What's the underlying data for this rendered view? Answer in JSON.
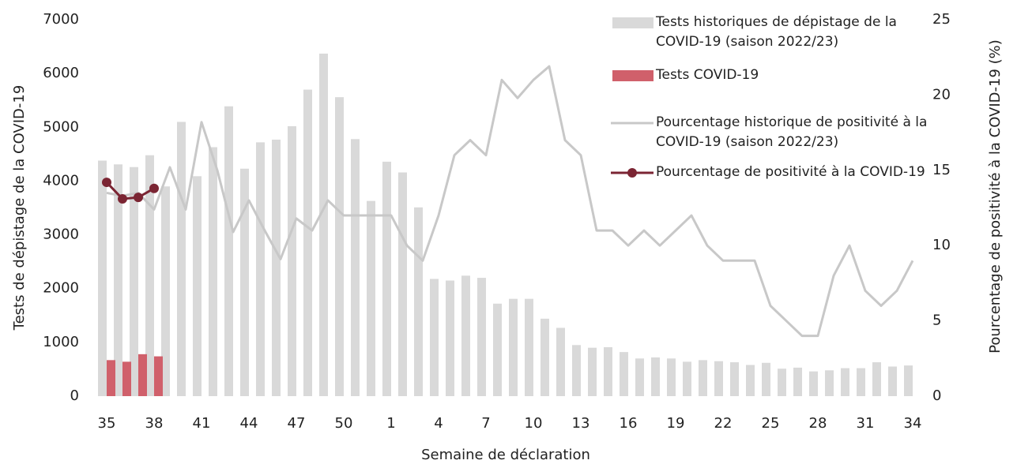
{
  "chart_data": {
    "type": "bar",
    "x_label": "Semaine de déclaration",
    "y_label": "Tests de dépistage de la COVID-19",
    "y2_label": "Pourcentage de positivité à la COVID-19 (%)",
    "categories": [
      35,
      null,
      null,
      38,
      null,
      null,
      41,
      null,
      null,
      44,
      null,
      null,
      47,
      null,
      null,
      50,
      null,
      null,
      1,
      null,
      null,
      4,
      null,
      null,
      7,
      null,
      null,
      10,
      null,
      null,
      13,
      null,
      null,
      16,
      null,
      null,
      19,
      null,
      null,
      22,
      null,
      null,
      25,
      null,
      null,
      28,
      null,
      null,
      31,
      null,
      null,
      34
    ],
    "ylim": [
      0,
      7000
    ],
    "yticks": [
      0,
      1000,
      2000,
      3000,
      4000,
      5000,
      6000,
      7000
    ],
    "y2lim": [
      0,
      25
    ],
    "y2ticks": [
      0,
      5,
      10,
      15,
      20,
      25
    ],
    "legend": "top-right",
    "series": [
      {
        "name": "Tests historiques de dépistage de la COVID-19 (saison 2022/23)",
        "type": "bar",
        "color": "#d9d9d9",
        "values": [
          4380,
          4310,
          4260,
          4480,
          3900,
          5100,
          4090,
          4630,
          5390,
          4230,
          4720,
          4770,
          5020,
          5700,
          6370,
          5560,
          4780,
          3630,
          4360,
          4160,
          3510,
          2180,
          2150,
          2240,
          2200,
          1720,
          1810,
          1810,
          1440,
          1270,
          950,
          900,
          910,
          820,
          700,
          720,
          700,
          640,
          670,
          650,
          630,
          580,
          620,
          510,
          530,
          460,
          480,
          520,
          520,
          630,
          550,
          570
        ]
      },
      {
        "name": "Tests COVID-19",
        "type": "bar",
        "color": "#d0606b",
        "values": [
          670,
          640,
          780,
          740,
          null,
          null,
          null,
          null,
          null,
          null,
          null,
          null,
          null,
          null,
          null,
          null,
          null,
          null,
          null,
          null,
          null,
          null,
          null,
          null,
          null,
          null,
          null,
          null,
          null,
          null,
          null,
          null,
          null,
          null,
          null,
          null,
          null,
          null,
          null,
          null,
          null,
          null,
          null,
          null,
          null,
          null,
          null,
          null,
          null,
          null,
          null,
          null
        ]
      },
      {
        "name": "Pourcentage historique de positivité à la COVID-19 (saison 2022/23)",
        "type": "line",
        "axis": "y2",
        "color": "#c8c8c8",
        "values": [
          13.5,
          13.3,
          13.5,
          12.4,
          15.2,
          12.4,
          18.2,
          15.0,
          10.9,
          13.0,
          11.0,
          9.1,
          11.8,
          11.0,
          13.0,
          12.0,
          12.0,
          12.0,
          12.0,
          10.0,
          9.0,
          12.0,
          16.0,
          17.0,
          16.0,
          21.0,
          19.8,
          21.0,
          21.9,
          17.0,
          16.0,
          11.0,
          11.0,
          10.0,
          11.0,
          10.0,
          11.0,
          12.0,
          10.0,
          9.0,
          9.0,
          9.0,
          6.0,
          5.0,
          4.0,
          4.0,
          8.0,
          10.0,
          7.0,
          6.0,
          7.0,
          9.0
        ]
      },
      {
        "name": "Pourcentage de positivité à la COVID-19",
        "type": "line",
        "axis": "y2",
        "color": "#7b2533",
        "markers": true,
        "values": [
          14.2,
          13.1,
          13.2,
          13.8,
          null,
          null,
          null,
          null,
          null,
          null,
          null,
          null,
          null,
          null,
          null,
          null,
          null,
          null,
          null,
          null,
          null,
          null,
          null,
          null,
          null,
          null,
          null,
          null,
          null,
          null,
          null,
          null,
          null,
          null,
          null,
          null,
          null,
          null,
          null,
          null,
          null,
          null,
          null,
          null,
          null,
          null,
          null,
          null,
          null,
          null,
          null,
          null
        ]
      }
    ]
  }
}
